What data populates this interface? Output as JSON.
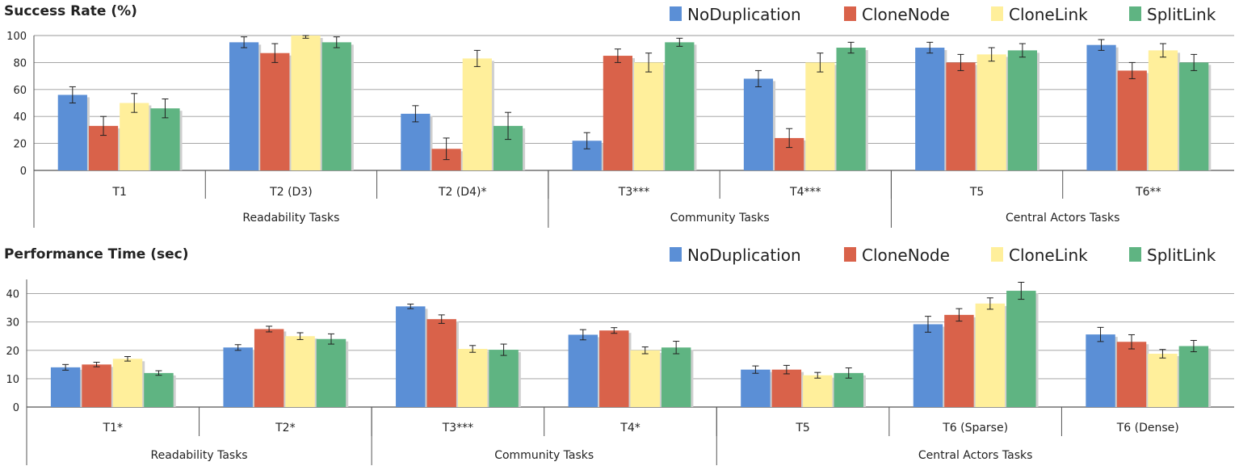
{
  "chart_data": [
    {
      "type": "bar",
      "title": "Success Rate (%)",
      "xlabel": "",
      "ylabel": "",
      "ylim": [
        0,
        100
      ],
      "yticks": [
        0,
        20,
        40,
        60,
        80,
        100
      ],
      "grid": true,
      "legend_position": "top-right",
      "categories": [
        "T1",
        "T2 (D3)",
        "T2 (D4)*",
        "T3***",
        "T4***",
        "T5",
        "T6**"
      ],
      "groups": [
        {
          "label": "Readability Tasks",
          "span": [
            0,
            2
          ]
        },
        {
          "label": "Community Tasks",
          "span": [
            3,
            4
          ]
        },
        {
          "label": "Central Actors Tasks",
          "span": [
            5,
            6
          ]
        }
      ],
      "series": [
        {
          "name": "NoDuplication",
          "color": "#5b8fd6",
          "values": [
            56,
            95,
            42,
            22,
            68,
            91,
            93
          ],
          "errors": [
            6,
            4,
            6,
            6,
            6,
            4,
            4
          ]
        },
        {
          "name": "CloneNode",
          "color": "#d9624a",
          "values": [
            33,
            87,
            16,
            85,
            24,
            80,
            74
          ],
          "errors": [
            7,
            7,
            8,
            5,
            7,
            6,
            6
          ]
        },
        {
          "name": "CloneLink",
          "color": "#ffef9b",
          "values": [
            50,
            100,
            83,
            80,
            80,
            86,
            89
          ],
          "errors": [
            7,
            2,
            6,
            7,
            7,
            5,
            5
          ]
        },
        {
          "name": "SplitLink",
          "color": "#5fb482",
          "values": [
            46,
            95,
            33,
            95,
            91,
            89,
            80
          ],
          "errors": [
            7,
            4,
            10,
            3,
            4,
            5,
            6
          ]
        }
      ]
    },
    {
      "type": "bar",
      "title": "Performance Time (sec)",
      "xlabel": "",
      "ylabel": "",
      "ylim": [
        0,
        45
      ],
      "yticks": [
        0,
        10,
        20,
        30,
        40
      ],
      "grid": true,
      "legend_position": "top-right",
      "categories": [
        "T1*",
        "T2*",
        "T3***",
        "T4*",
        "T5",
        "T6 (Sparse)",
        "T6 (Dense)"
      ],
      "groups": [
        {
          "label": "Readability Tasks",
          "span": [
            0,
            1
          ]
        },
        {
          "label": "Community Tasks",
          "span": [
            2,
            3
          ]
        },
        {
          "label": "Central Actors Tasks",
          "span": [
            4,
            6
          ]
        }
      ],
      "series": [
        {
          "name": "NoDuplication",
          "color": "#5b8fd6",
          "values": [
            14,
            21,
            35.5,
            25.5,
            13.2,
            29.2,
            25.6
          ],
          "errors": [
            1.0,
            1.0,
            0.8,
            1.8,
            1.3,
            2.8,
            2.5
          ]
        },
        {
          "name": "CloneNode",
          "color": "#d9624a",
          "values": [
            15,
            27.5,
            31,
            27,
            13.2,
            32.5,
            23
          ],
          "errors": [
            0.8,
            1.0,
            1.5,
            1.0,
            1.5,
            2.2,
            2.5
          ]
        },
        {
          "name": "CloneLink",
          "color": "#ffef9b",
          "values": [
            17,
            25,
            20.5,
            20,
            11.2,
            36.5,
            18.8
          ],
          "errors": [
            0.8,
            1.2,
            1.2,
            1.2,
            1.0,
            2.0,
            1.5
          ]
        },
        {
          "name": "SplitLink",
          "color": "#5fb482",
          "values": [
            12,
            24,
            20.2,
            21,
            12,
            41,
            21.5
          ],
          "errors": [
            0.8,
            1.8,
            2.0,
            2.2,
            1.8,
            3.0,
            2.0
          ]
        }
      ]
    }
  ]
}
